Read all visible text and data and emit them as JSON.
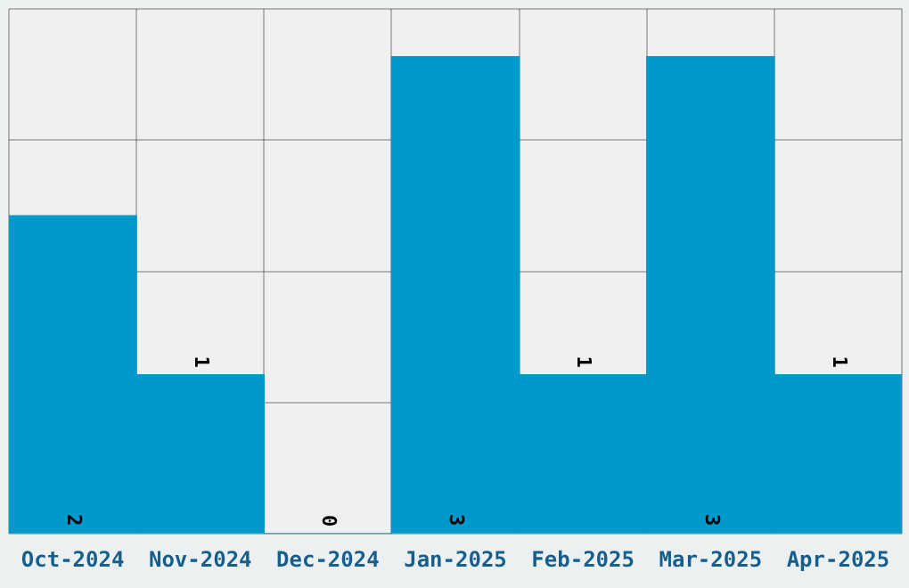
{
  "chart_data": {
    "type": "bar",
    "categories": [
      "Oct-2024",
      "Nov-2024",
      "Dec-2024",
      "Jan-2025",
      "Feb-2025",
      "Mar-2025",
      "Apr-2025"
    ],
    "values": [
      2,
      1,
      0,
      3,
      1,
      3,
      1
    ],
    "color": "#0099cc",
    "ylim": [
      0,
      3.3
    ],
    "yticks": [
      0,
      {
        "value": 0.825,
        "label": null
      },
      {
        "value": 1.65,
        "label": null
      },
      {
        "value": 2.475,
        "label": null
      },
      {
        "value": 3.3,
        "label": null
      }
    ],
    "tick_labels": "x",
    "grid": true,
    "data_labels": true
  }
}
